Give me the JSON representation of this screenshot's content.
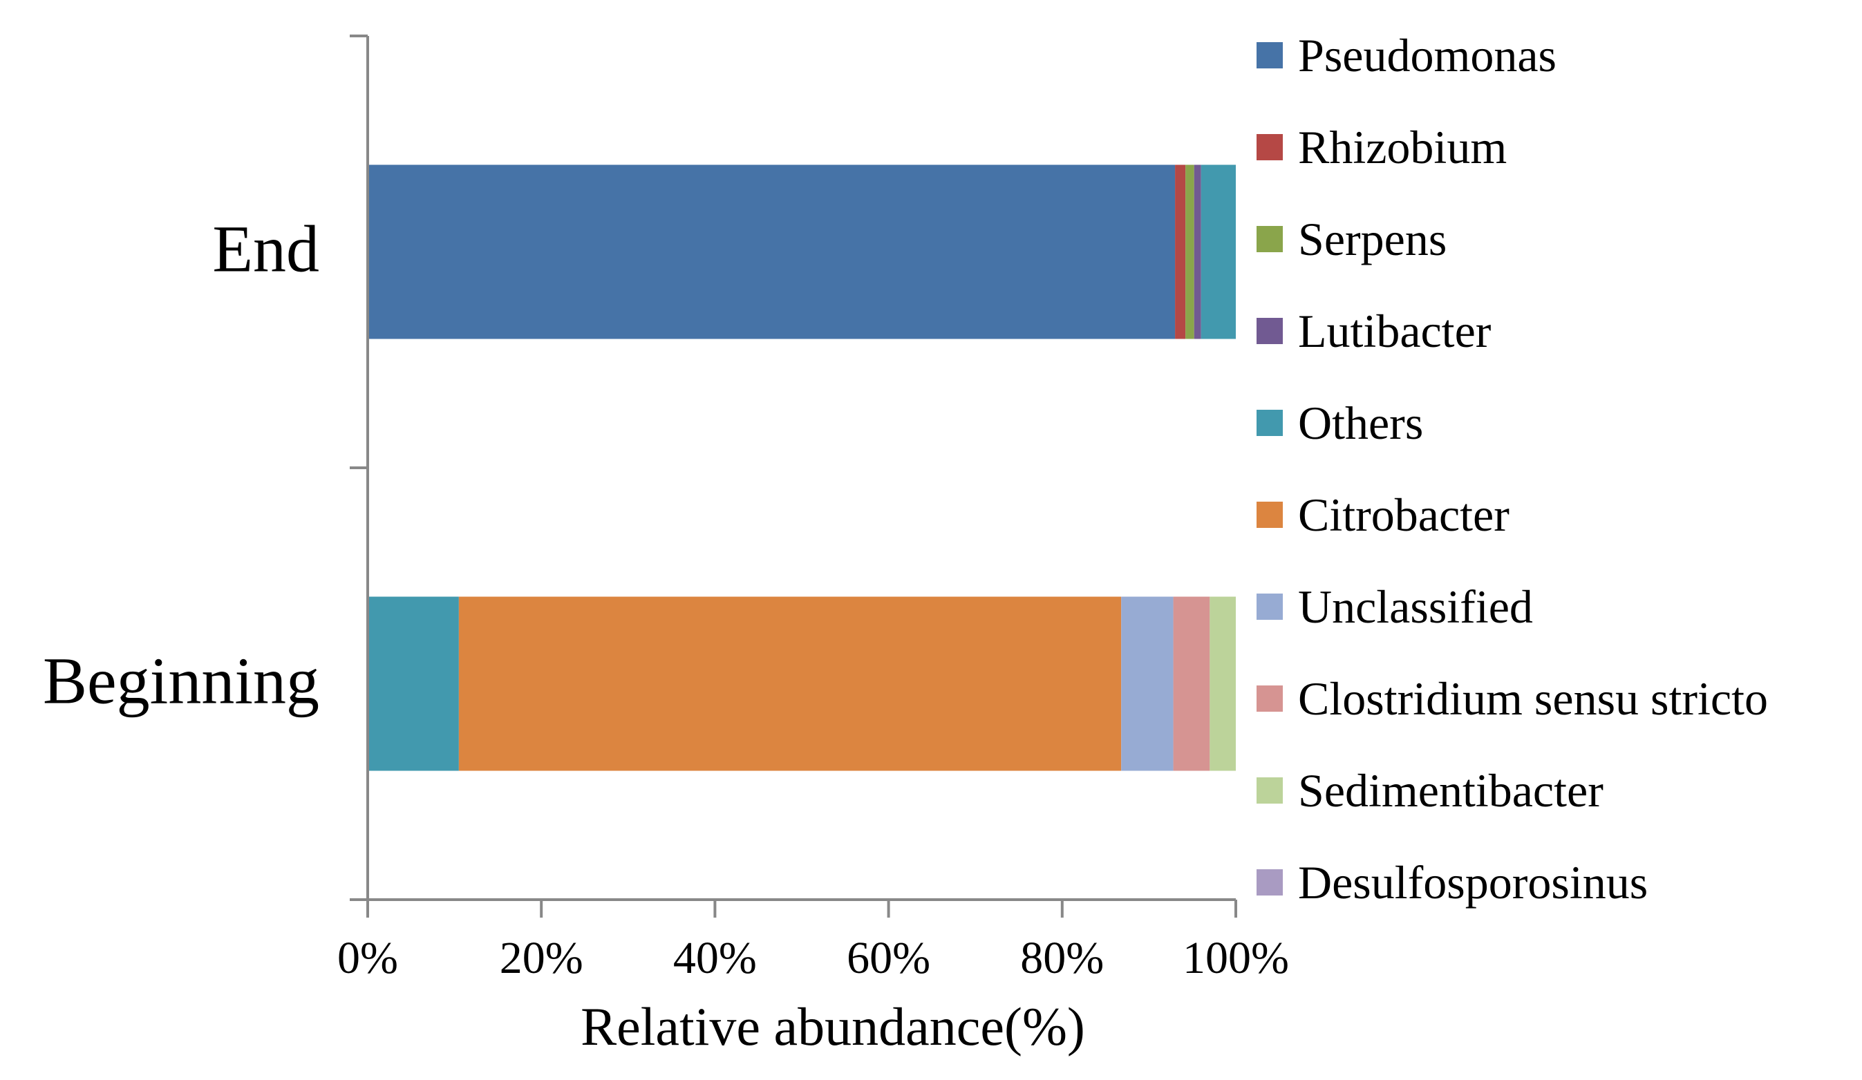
{
  "chart_data": {
    "type": "bar",
    "orientation": "horizontal",
    "stacked": true,
    "normalized": true,
    "categories": [
      "End",
      "Beginning"
    ],
    "series": [
      {
        "name": "Pseudomonas",
        "color": "#4673A7",
        "values": [
          93.0,
          0.0
        ]
      },
      {
        "name": "Rhizobium",
        "color": "#B54845",
        "values": [
          1.2,
          0.0
        ]
      },
      {
        "name": "Serpens",
        "color": "#8AA54B",
        "values": [
          1.0,
          0.0
        ]
      },
      {
        "name": "Lutibacter",
        "color": "#715A92",
        "values": [
          0.8,
          0.0
        ]
      },
      {
        "name": "Others",
        "color": "#4299AE",
        "values": [
          4.0,
          10.5
        ]
      },
      {
        "name": "Citrobacter",
        "color": "#DC8540",
        "values": [
          0.0,
          76.3
        ]
      },
      {
        "name": "Unclassified",
        "color": "#97ABD3",
        "values": [
          0.0,
          6.0
        ]
      },
      {
        "name": "Clostridium sensu stricto",
        "color": "#D69492",
        "values": [
          0.0,
          4.2
        ]
      },
      {
        "name": "Sedimentibacter",
        "color": "#BCD39A",
        "values": [
          0.0,
          3.0
        ]
      },
      {
        "name": "Desulfosporosinus",
        "color": "#A99BC2",
        "values": [
          0.0,
          0.0
        ]
      }
    ],
    "x_ticks": [
      "0%",
      "20%",
      "40%",
      "60%",
      "80%",
      "100%"
    ],
    "xlim": [
      0,
      100
    ],
    "xlabel": "Relative abundance(%)",
    "ylabel": "",
    "title": "",
    "grid": false,
    "legend_position": "right"
  }
}
